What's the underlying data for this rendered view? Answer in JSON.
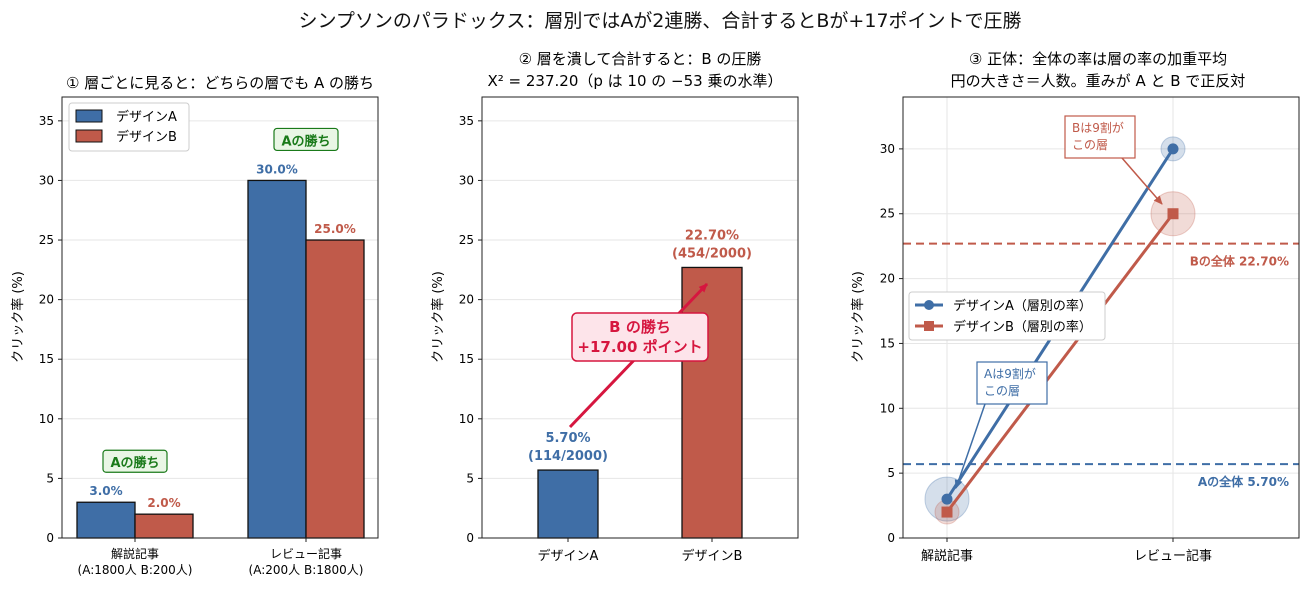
{
  "suptitle": "シンプソンのパラドックス：層別ではAが2連勝、合計するとBが+17ポイントで圧勝",
  "colors": {
    "a": "#3f6ea6",
    "b": "#c05a4a",
    "win_green": "#1a7a1a",
    "red_accent": "#d6163f",
    "win_bg": "#e9f6e5",
    "red_bg": "#fde4ea"
  },
  "chart_data": [
    {
      "type": "bar",
      "title": "① 層ごとに見ると：どちらの層でも A の勝ち",
      "ylabel": "クリック率 (%)",
      "ylim": [
        0,
        37
      ],
      "yticks": [
        0,
        5,
        10,
        15,
        20,
        25,
        30,
        35
      ],
      "categories": [
        "解説記事\n(A:1800人 B:200人)",
        "レビュー記事\n(A:200人 B:1800人)"
      ],
      "series": [
        {
          "name": "デザインA",
          "values": [
            3.0,
            30.0
          ],
          "labels": [
            "3.0%",
            "30.0%"
          ]
        },
        {
          "name": "デザインB",
          "values": [
            2.0,
            25.0
          ],
          "labels": [
            "2.0%",
            "25.0%"
          ]
        }
      ],
      "annotations": [
        "Aの勝ち",
        "Aの勝ち"
      ],
      "legend": "top-left",
      "grid": "y"
    },
    {
      "type": "bar",
      "title": "② 層を潰して合計すると：B の圧勝",
      "subtitle": "Χ² = 237.20（p は 10 の −53 乗の水準）",
      "ylabel": "クリック率 (%)",
      "ylim": [
        0,
        37
      ],
      "yticks": [
        0,
        5,
        10,
        15,
        20,
        25,
        30,
        35
      ],
      "categories": [
        "デザインA",
        "デザインB"
      ],
      "values": [
        5.7,
        22.7
      ],
      "labels": [
        "5.70%\n(114/2000)",
        "22.70%\n(454/2000)"
      ],
      "annotation": "B の勝ち\n+17.00 ポイント",
      "grid": "y"
    },
    {
      "type": "line",
      "title": "③ 正体：全体の率は層の率の加重平均",
      "subtitle": "円の大きさ＝人数。重みが A と B で正反対",
      "ylabel": "クリック率 (%)",
      "ylim": [
        0,
        34
      ],
      "yticks": [
        0,
        5,
        10,
        15,
        20,
        25,
        30
      ],
      "categories": [
        "解説記事",
        "レビュー記事"
      ],
      "series": [
        {
          "name": "デザインA（層別の率）",
          "values": [
            3.0,
            30.0
          ],
          "weights": [
            1800,
            200
          ]
        },
        {
          "name": "デザインB（層別の率）",
          "values": [
            2.0,
            25.0
          ],
          "weights": [
            200,
            1800
          ]
        }
      ],
      "hlines": [
        {
          "value": 22.7,
          "label": "Bの全体 22.70%"
        },
        {
          "value": 5.7,
          "label": "Aの全体 5.70%"
        }
      ],
      "annotations": [
        "Bは9割が\nこの層",
        "Aは9割が\nこの層"
      ],
      "legend": "center-left",
      "grid": "both"
    }
  ]
}
